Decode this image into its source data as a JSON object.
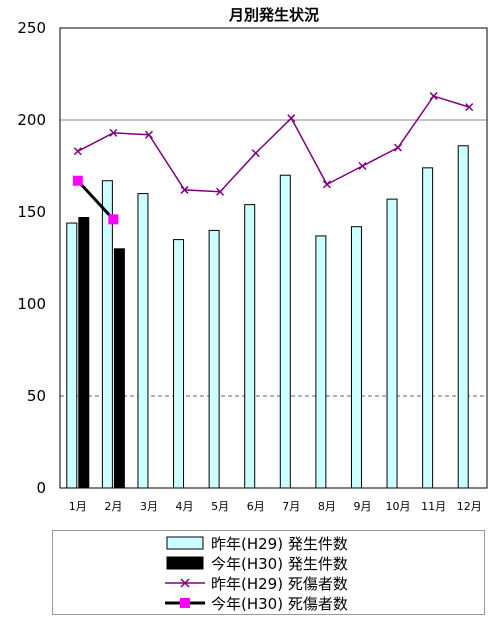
{
  "chart_data": {
    "type": "bar",
    "title": "月別発生状況",
    "categories": [
      "1月",
      "2月",
      "3月",
      "4月",
      "5月",
      "6月",
      "7月",
      "8月",
      "9月",
      "10月",
      "11月",
      "12月"
    ],
    "ylim": [
      0,
      250
    ],
    "yticks": [
      0,
      50,
      100,
      150,
      200,
      250
    ],
    "grid": "horizontal gridlines at 50 (dashed) and 200 (solid)",
    "legend_position": "bottom",
    "series": [
      {
        "name": "昨年(H29) 発生件数",
        "kind": "bar",
        "color": "#ccffff",
        "values": [
          144,
          167,
          160,
          135,
          140,
          154,
          170,
          137,
          142,
          157,
          174,
          186
        ]
      },
      {
        "name": "今年(H30) 発生件数",
        "kind": "bar",
        "color": "#000000",
        "values": [
          147,
          130,
          null,
          null,
          null,
          null,
          null,
          null,
          null,
          null,
          null,
          null
        ]
      },
      {
        "name": "昨年(H29) 死傷者数",
        "kind": "line",
        "color": "#800080",
        "marker": "x",
        "values": [
          183,
          193,
          192,
          162,
          161,
          182,
          201,
          165,
          175,
          185,
          213,
          207
        ]
      },
      {
        "name": "今年(H30) 死傷者数",
        "kind": "line",
        "color": "#000000",
        "marker": "square",
        "marker_color": "#ff00ff",
        "values": [
          167,
          146,
          null,
          null,
          null,
          null,
          null,
          null,
          null,
          null,
          null,
          null
        ]
      }
    ]
  }
}
